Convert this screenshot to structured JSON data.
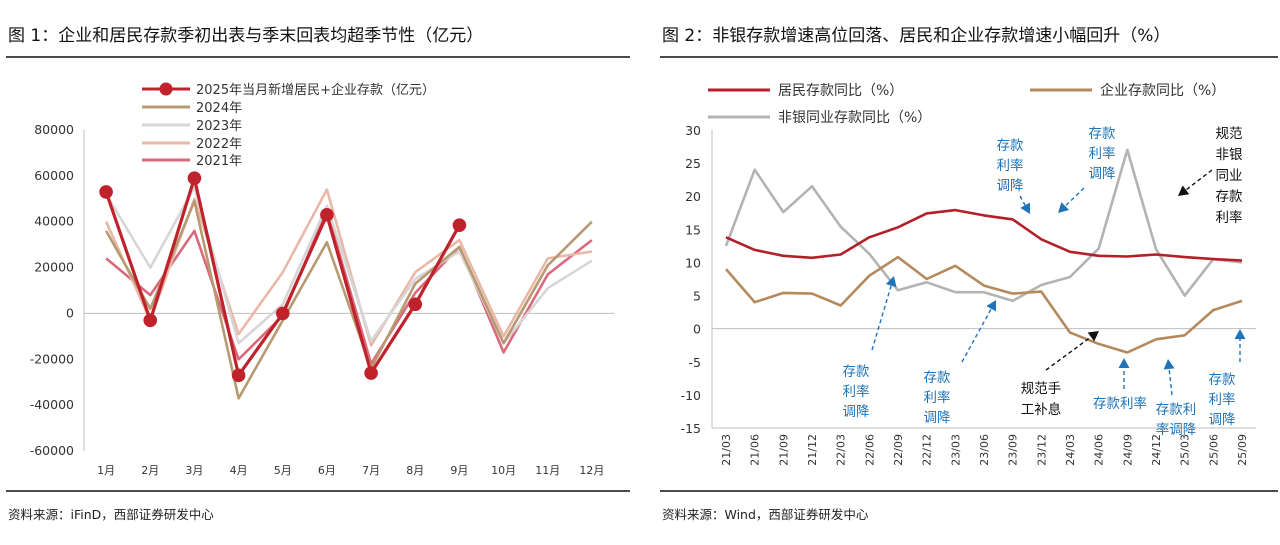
{
  "chart_data": [
    {
      "type": "line",
      "title": "图 1：企业和居民存款季初出表与季末回表均超季节性（亿元）",
      "source": "资料来源：iFinD，西部证券研发中心",
      "categories": [
        "1月",
        "2月",
        "3月",
        "4月",
        "5月",
        "6月",
        "7月",
        "8月",
        "9月",
        "10月",
        "11月",
        "12月"
      ],
      "ylim": [
        -60000,
        80000
      ],
      "yticks": [
        "80000",
        "60000",
        "40000",
        "20000",
        "0",
        "-20000",
        "-40000",
        "-60000"
      ],
      "legend_position": "top-left",
      "series": [
        {
          "name": "2025年当月新增居民+企业存款（亿元）",
          "color": "#c0222c",
          "marker": true,
          "values": [
            53000,
            -3000,
            59000,
            -27000,
            0,
            43000,
            -26000,
            4000,
            38500,
            null,
            null,
            null
          ]
        },
        {
          "name": "2024年",
          "color": "#b89a72",
          "values": [
            36000,
            2000,
            49000,
            -37000,
            -3000,
            31000,
            -24000,
            13000,
            29000,
            -13000,
            21000,
            40000
          ]
        },
        {
          "name": "2023年",
          "color": "#d6d6d6",
          "values": [
            52000,
            20000,
            55000,
            -13000,
            4000,
            47000,
            -12000,
            15000,
            27000,
            -13000,
            11000,
            23000
          ]
        },
        {
          "name": "2022年",
          "color": "#eab8a8",
          "values": [
            40000,
            -3000,
            50000,
            -9000,
            18000,
            54000,
            -14000,
            18000,
            32000,
            -10000,
            24000,
            27000
          ]
        },
        {
          "name": "2021年",
          "color": "#d96a7c",
          "values": [
            24000,
            8000,
            36000,
            -20000,
            -1000,
            45000,
            -22000,
            9000,
            29000,
            -17000,
            17000,
            32000
          ]
        }
      ]
    },
    {
      "type": "line",
      "title": "图 2：非银存款增速高位回落、居民和企业存款增速小幅回升（%）",
      "source": "资料来源：Wind，西部证券研发中心",
      "categories": [
        "21/03",
        "21/06",
        "21/09",
        "21/12",
        "22/03",
        "22/06",
        "22/09",
        "22/12",
        "23/03",
        "23/06",
        "23/09",
        "23/12",
        "24/03",
        "24/06",
        "24/09",
        "24/12",
        "25/03",
        "25/06",
        "25/09"
      ],
      "ylim": [
        -15,
        30
      ],
      "yticks": [
        "30",
        "25",
        "20",
        "15",
        "10",
        "5",
        "0",
        "-5",
        "-10",
        "-15"
      ],
      "legend_position": "top",
      "series": [
        {
          "name": "居民存款同比（%）",
          "color": "#b3202a",
          "values": [
            13.8,
            11.9,
            11.0,
            10.7,
            11.2,
            13.8,
            15.3,
            17.4,
            17.9,
            17.1,
            16.5,
            13.5,
            11.6,
            11.0,
            10.9,
            11.2,
            10.8,
            10.5,
            10.3
          ]
        },
        {
          "name": "企业存款同比（%）",
          "color": "#b48a5c",
          "values": [
            9.0,
            4.0,
            5.4,
            5.3,
            3.5,
            8.0,
            10.8,
            7.5,
            9.5,
            6.5,
            5.3,
            5.6,
            -0.6,
            -2.3,
            -3.6,
            -1.6,
            -1.0,
            2.8,
            4.2
          ]
        },
        {
          "name": "非银同业存款同比（%）",
          "color": "#b3b3b3",
          "values": [
            12.5,
            24.0,
            17.6,
            21.5,
            15.4,
            11.3,
            5.8,
            7.0,
            5.5,
            5.5,
            4.2,
            6.6,
            7.8,
            12.1,
            27.0,
            12.0,
            5.0,
            10.5,
            10.0
          ]
        }
      ],
      "annotations_blue": [
        [
          "存款",
          "利率",
          "调降"
        ],
        [
          "存款",
          "利率",
          "调降"
        ],
        [
          "存款",
          "利率",
          "调降"
        ],
        [
          "存款",
          "利率",
          "调降"
        ],
        [
          "存款利率"
        ],
        [
          "存款利",
          "率调降"
        ],
        [
          "存款",
          "利率",
          "调降"
        ]
      ],
      "annotations_black": [
        [
          "规范",
          "非银",
          "同业",
          "存款",
          "利率"
        ],
        [
          "规范手",
          "工补息"
        ]
      ]
    }
  ]
}
